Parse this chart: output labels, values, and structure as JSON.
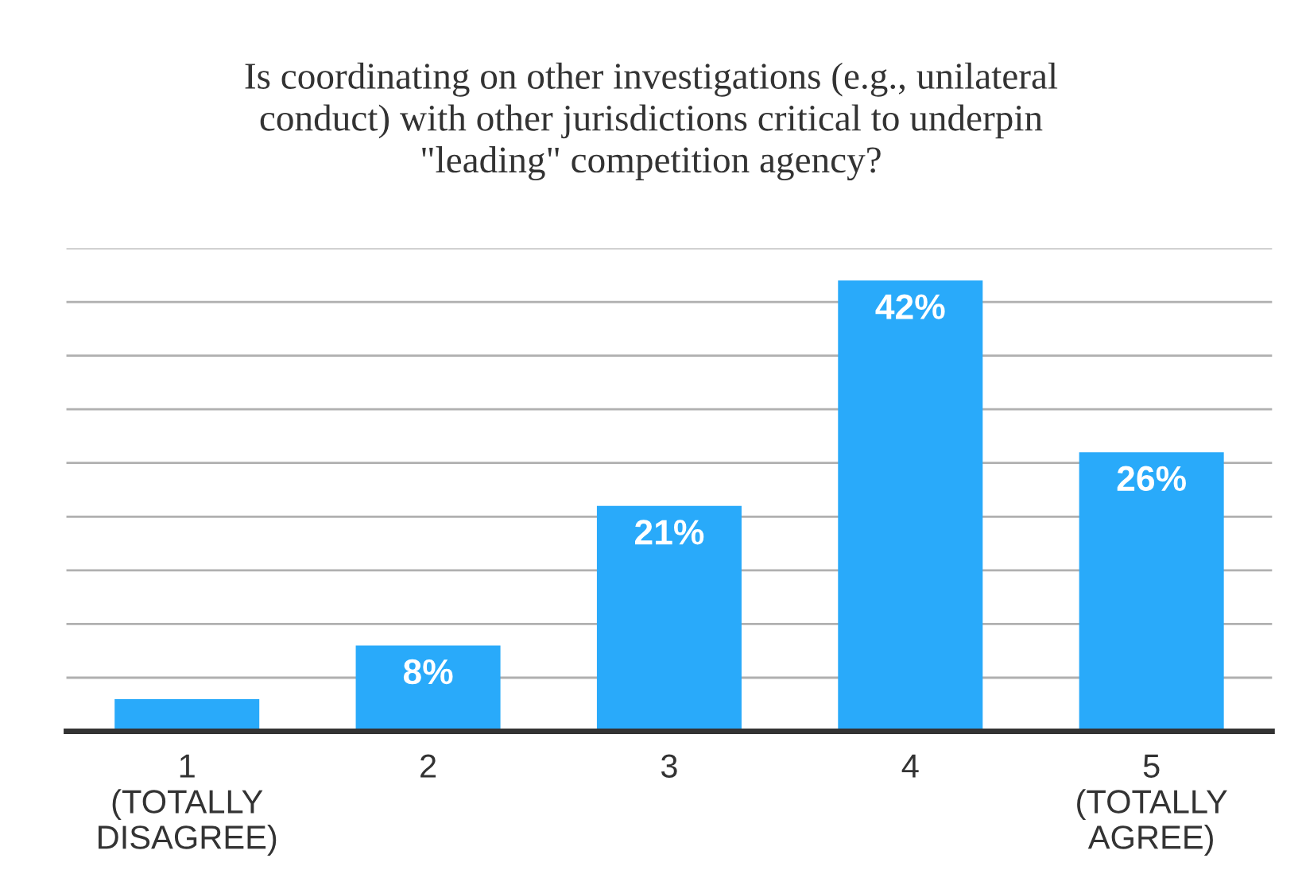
{
  "chart_data": {
    "type": "bar",
    "title": "Is coordinating on other investigations (e.g., unilateral\nconduct) with other jurisdictions critical to underpin\n\"leading\" competition agency?",
    "categories": [
      "1\n(TOTALLY\nDISAGREE)",
      "2",
      "3",
      "4",
      "5\n(TOTALLY\nAGREE)"
    ],
    "values": [
      3,
      8,
      21,
      42,
      26
    ],
    "value_labels": [
      null,
      "8%",
      "21%",
      "42%",
      "26%"
    ],
    "color": "#29aafa",
    "ylim": [
      0,
      45
    ],
    "yticks": [
      {
        "value": 0,
        "label": null
      },
      {
        "value": 5,
        "label": null
      },
      {
        "value": 10,
        "label": null
      },
      {
        "value": 15,
        "label": null
      },
      {
        "value": 20,
        "label": null
      },
      {
        "value": 25,
        "label": null
      },
      {
        "value": 30,
        "label": null
      },
      {
        "value": 35,
        "label": null
      },
      {
        "value": 40,
        "label": null
      },
      {
        "value": 45,
        "label": null
      }
    ],
    "tick_labels": "x",
    "grid": "y"
  }
}
